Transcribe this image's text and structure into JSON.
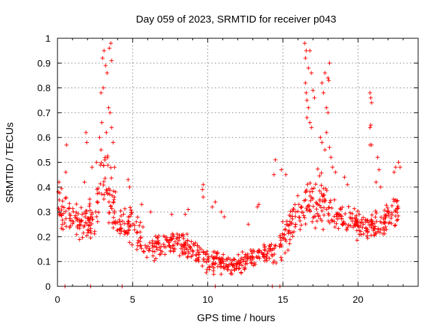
{
  "chart_data": {
    "type": "scatter",
    "title": "Day 059 of 2023, SRMTID for receiver p043",
    "xlabel": "GPS time / hours",
    "ylabel": "SRMTID / TECUs",
    "xlim": [
      0,
      24
    ],
    "ylim": [
      0,
      1
    ],
    "xticks": [
      0,
      5,
      10,
      15,
      20
    ],
    "yticks": [
      0,
      0.1,
      0.2,
      0.3,
      0.4,
      0.5,
      0.6,
      0.7,
      0.8,
      0.9,
      1
    ],
    "grid": true,
    "marker": "+",
    "color": "#ff0000",
    "envelope": [
      {
        "x": 0.0,
        "center": 0.33,
        "spread": 0.08
      },
      {
        "x": 1.0,
        "center": 0.27,
        "spread": 0.08
      },
      {
        "x": 2.0,
        "center": 0.25,
        "spread": 0.08
      },
      {
        "x": 2.5,
        "center": 0.3,
        "spread": 0.08
      },
      {
        "x": 3.0,
        "center": 0.45,
        "spread": 0.12
      },
      {
        "x": 3.5,
        "center": 0.38,
        "spread": 0.12
      },
      {
        "x": 4.0,
        "center": 0.25,
        "spread": 0.07
      },
      {
        "x": 5.0,
        "center": 0.25,
        "spread": 0.07
      },
      {
        "x": 6.0,
        "center": 0.15,
        "spread": 0.05
      },
      {
        "x": 7.0,
        "center": 0.16,
        "spread": 0.05
      },
      {
        "x": 8.0,
        "center": 0.18,
        "spread": 0.05
      },
      {
        "x": 9.0,
        "center": 0.14,
        "spread": 0.05
      },
      {
        "x": 10.0,
        "center": 0.11,
        "spread": 0.05
      },
      {
        "x": 11.0,
        "center": 0.09,
        "spread": 0.04
      },
      {
        "x": 12.0,
        "center": 0.09,
        "spread": 0.04
      },
      {
        "x": 13.0,
        "center": 0.12,
        "spread": 0.04
      },
      {
        "x": 14.0,
        "center": 0.13,
        "spread": 0.04
      },
      {
        "x": 14.6,
        "center": 0.15,
        "spread": 0.05
      },
      {
        "x": 15.5,
        "center": 0.25,
        "spread": 0.08
      },
      {
        "x": 16.5,
        "center": 0.32,
        "spread": 0.1
      },
      {
        "x": 17.5,
        "center": 0.35,
        "spread": 0.1
      },
      {
        "x": 18.5,
        "center": 0.28,
        "spread": 0.07
      },
      {
        "x": 19.5,
        "center": 0.27,
        "spread": 0.06
      },
      {
        "x": 20.5,
        "center": 0.24,
        "spread": 0.06
      },
      {
        "x": 21.5,
        "center": 0.25,
        "spread": 0.06
      },
      {
        "x": 22.7,
        "center": 0.3,
        "spread": 0.08
      }
    ],
    "gaps": [
      [
        14.55,
        14.75
      ]
    ],
    "sample_count": 900,
    "outliers": [
      [
        3.0,
        0.92
      ],
      [
        3.1,
        0.95
      ],
      [
        3.2,
        0.89
      ],
      [
        3.3,
        0.86
      ],
      [
        3.45,
        0.96
      ],
      [
        3.55,
        0.98
      ],
      [
        3.6,
        0.91
      ],
      [
        2.9,
        0.78
      ],
      [
        3.05,
        0.8
      ],
      [
        3.4,
        0.72
      ],
      [
        3.5,
        0.7
      ],
      [
        2.95,
        0.66
      ],
      [
        3.25,
        0.62
      ],
      [
        3.6,
        0.64
      ],
      [
        2.8,
        0.6
      ],
      [
        2.9,
        0.55
      ],
      [
        3.7,
        0.58
      ],
      [
        2.6,
        0.5
      ],
      [
        3.8,
        0.48
      ],
      [
        1.9,
        0.62
      ],
      [
        1.95,
        0.58
      ],
      [
        2.3,
        0.48
      ],
      [
        0.6,
        0.57
      ],
      [
        0.55,
        0.46
      ],
      [
        0.1,
        0.42
      ],
      [
        1.8,
        0.42
      ],
      [
        4.7,
        0.43
      ],
      [
        4.8,
        0.4
      ],
      [
        9.7,
        0.41
      ],
      [
        9.65,
        0.39
      ],
      [
        9.7,
        0.36
      ],
      [
        14.5,
        0.51
      ],
      [
        14.4,
        0.45
      ],
      [
        14.9,
        0.47
      ],
      [
        15.2,
        0.45
      ],
      [
        16.45,
        0.98
      ],
      [
        16.55,
        0.95
      ],
      [
        16.5,
        0.92
      ],
      [
        16.8,
        0.95
      ],
      [
        16.7,
        0.88
      ],
      [
        16.9,
        0.86
      ],
      [
        16.5,
        0.82
      ],
      [
        16.55,
        0.78
      ],
      [
        16.6,
        0.75
      ],
      [
        16.7,
        0.72
      ],
      [
        16.8,
        0.66
      ],
      [
        16.9,
        0.64
      ],
      [
        17.0,
        0.79
      ],
      [
        17.1,
        0.76
      ],
      [
        16.6,
        0.68
      ],
      [
        17.6,
        0.82
      ],
      [
        17.7,
        0.78
      ],
      [
        17.8,
        0.86
      ],
      [
        18.1,
        0.9
      ],
      [
        18.0,
        0.84
      ],
      [
        18.05,
        0.83
      ],
      [
        17.9,
        0.72
      ],
      [
        18.0,
        0.7
      ],
      [
        17.5,
        0.6
      ],
      [
        17.6,
        0.58
      ],
      [
        17.8,
        0.55
      ],
      [
        17.9,
        0.62
      ],
      [
        18.1,
        0.56
      ],
      [
        18.2,
        0.52
      ],
      [
        18.3,
        0.48
      ],
      [
        18.5,
        0.46
      ],
      [
        19.1,
        0.44
      ],
      [
        19.3,
        0.41
      ],
      [
        20.8,
        0.78
      ],
      [
        20.85,
        0.76
      ],
      [
        20.9,
        0.74
      ],
      [
        20.85,
        0.65
      ],
      [
        20.8,
        0.64
      ],
      [
        20.9,
        0.57
      ],
      [
        20.8,
        0.57
      ],
      [
        21.3,
        0.52
      ],
      [
        21.4,
        0.47
      ],
      [
        21.2,
        0.42
      ],
      [
        21.5,
        0.4
      ],
      [
        22.5,
        0.48
      ],
      [
        22.4,
        0.46
      ],
      [
        22.7,
        0.5
      ],
      [
        22.8,
        0.48
      ],
      [
        10.5,
        0.34
      ],
      [
        10.3,
        0.32
      ],
      [
        10.9,
        0.3
      ],
      [
        11.1,
        0.28
      ],
      [
        13.3,
        0.32
      ],
      [
        13.4,
        0.33
      ],
      [
        12.7,
        0.25
      ],
      [
        8.5,
        0.29
      ],
      [
        8.7,
        0.31
      ],
      [
        7.6,
        0.29
      ],
      [
        6.2,
        0.3
      ],
      [
        5.6,
        0.33
      ]
    ],
    "axis_markers": [
      0.5,
      2.2,
      4.3,
      10.5,
      14.3,
      14.8
    ]
  }
}
